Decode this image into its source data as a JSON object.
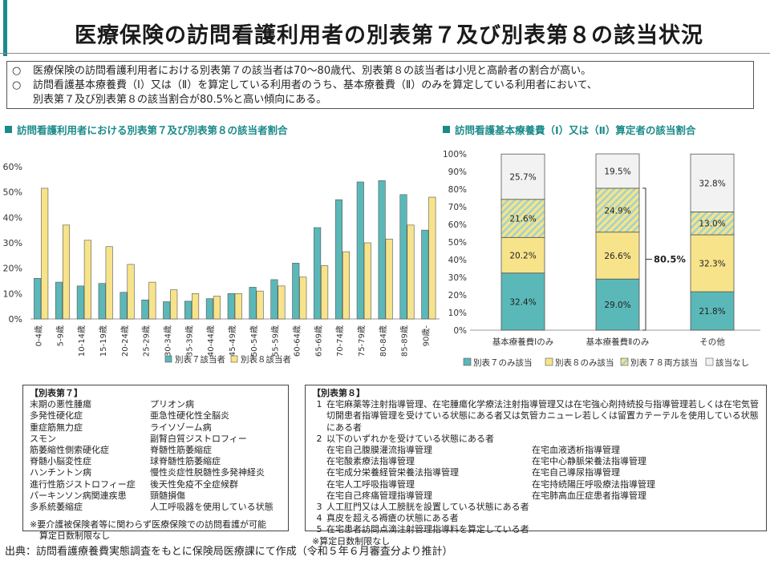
{
  "title": "医療保険の訪問看護利用者の別表第７及び別表第８の該当状況",
  "summary": {
    "bullet": "○",
    "line1": "医療保険の訪問看護利用者における別表第７の該当者は70～80歳代、別表第８の該当者は小児と高齢者の割合が高い。",
    "line2": "訪問看護基本療養費（Ⅰ）又は（Ⅱ）を算定している利用者のうち、基本療養費（Ⅱ）のみを算定している利用者において、",
    "line3": "別表第７及び別表第８の該当割合が80.5%と高い傾向にある。"
  },
  "chart_data": [
    {
      "type": "bar",
      "title": "訪問看護利用者における別表第７及び別表第８の該当者割合",
      "categories": [
        "0-4歳",
        "5-9歳",
        "10-14歳",
        "15-19歳",
        "20-24歳",
        "25-29歳",
        "30-34歳",
        "35-39歳",
        "40-44歳",
        "45-49歳",
        "50-54歳",
        "55-59歳",
        "60-64歳",
        "65-69歳",
        "70-74歳",
        "75-79歳",
        "80-84歳",
        "85-89歳",
        "90歳-"
      ],
      "series": [
        {
          "name": "別表７該当者",
          "color": "#5bb8b8",
          "values": [
            16,
            14.5,
            13,
            14,
            10.5,
            7.5,
            6.8,
            7,
            8,
            10,
            12.5,
            15.5,
            22,
            36,
            47,
            54,
            54.5,
            49,
            35
          ]
        },
        {
          "name": "別表８該当者",
          "color": "#f7e38a",
          "values": [
            51.5,
            37,
            31,
            28.5,
            21.5,
            14.5,
            11.5,
            10,
            9,
            10,
            11,
            13,
            16.5,
            21,
            26.5,
            30,
            31.5,
            37,
            48
          ]
        }
      ],
      "yticks": [
        "0%",
        "10%",
        "20%",
        "30%",
        "40%",
        "50%",
        "60%"
      ],
      "ylim": [
        0,
        60
      ],
      "legend_position": "bottom"
    },
    {
      "type": "bar",
      "stacked": true,
      "title": "訪問看護基本療養費（Ⅰ）又は（Ⅱ）算定者の該当割合",
      "categories": [
        "基本療養費Ⅰのみ",
        "基本療養費Ⅱのみ",
        "その他"
      ],
      "series": [
        {
          "name": "別表７のみ該当",
          "color": "#5bb8b8",
          "pattern": "solid",
          "values": [
            32.4,
            29.0,
            21.8
          ],
          "labels": [
            "32.4%",
            "29.0%",
            "21.8%"
          ]
        },
        {
          "name": "別表８のみ該当",
          "color": "#f7e38a",
          "pattern": "solid",
          "values": [
            20.2,
            26.6,
            32.3
          ],
          "labels": [
            "20.2%",
            "26.6%",
            "32.3%"
          ]
        },
        {
          "name": "別表７８両方該当",
          "color": "#f7e38a",
          "pattern": "hatch",
          "values": [
            21.6,
            24.9,
            13.0
          ],
          "labels": [
            "21.6%",
            "24.9%",
            "13.0%"
          ]
        },
        {
          "name": "該当なし",
          "color": "#f2f2f2",
          "pattern": "solid",
          "values": [
            25.7,
            19.5,
            32.8
          ],
          "labels": [
            "25.7%",
            "19.5%",
            "32.8%"
          ]
        }
      ],
      "yticks": [
        "0%",
        "10%",
        "20%",
        "30%",
        "40%",
        "50%",
        "60%",
        "70%",
        "80%",
        "90%",
        "100%"
      ],
      "ylim": [
        0,
        100
      ],
      "annotation": "80.5%",
      "legend_position": "bottom"
    }
  ],
  "table7": {
    "header": "【別表第７】",
    "diseases": [
      "末期の悪性腫瘍",
      "プリオン病",
      "多発性硬化症",
      "亜急性硬化性全脳炎",
      "重症筋無力症",
      "ライソゾーム病",
      "スモン",
      "副腎白質ジストロフィー",
      "筋萎縮性側索硬化症",
      "脊髄性筋萎縮症",
      "脊髄小脳変性症",
      "球脊髄性筋萎縮症",
      "ハンチントン病",
      "慢性炎症性脱髄性多発神経炎",
      "進行性筋ジストロフィー症",
      "後天性免疫不全症候群",
      "パーキンソン病関連疾患",
      "頸髄損傷",
      "多系統萎縮症",
      "人工呼吸器を使用している状態"
    ],
    "note1": "※要介護被保険者等に関わらず医療保険での訪問看護が可能",
    "note2": "算定日数制限なし"
  },
  "table8": {
    "header": "【別表第８】",
    "item1_num": "1",
    "item1": "在宅麻薬等注射指導管理、在宅腫瘍化学療法注射指導管理又は在宅強心剤持続投与指導管理若しくは在宅気管切開患者指導管理を受けている状態にある者又は気管カニューレ若しくは留置カテーテルを使用している状態にある者",
    "item2_num": "2",
    "item2": "以下のいずれかを受けている状態にある者",
    "subitems": [
      "在宅自己腹膜灌流指導管理",
      "在宅血液透析指導管理",
      "在宅酸素療法指導管理",
      "在宅中心静脈栄養法指導管理",
      "在宅成分栄養経管栄養法指導管理",
      "在宅自己導尿指導管理",
      "在宅人工呼吸指導管理",
      "在宅持続陽圧呼吸療法指導管理",
      "在宅自己疼痛管理指導管理",
      "在宅肺高血圧症患者指導管理"
    ],
    "item3_num": "3",
    "item3": "人工肛門又は人工膀胱を設置している状態にある者",
    "item4_num": "4",
    "item4": "真皮を超える褥瘡の状態にある者",
    "item5_num": "5",
    "item5": "在宅患者訪問点滴注射管理指導料を算定している者",
    "note": "※算定日数制限なし"
  },
  "source": "出典：訪問看護療養費実態調査をもとに保険局医療課にて作成（令和５年６月審査分より推計）"
}
